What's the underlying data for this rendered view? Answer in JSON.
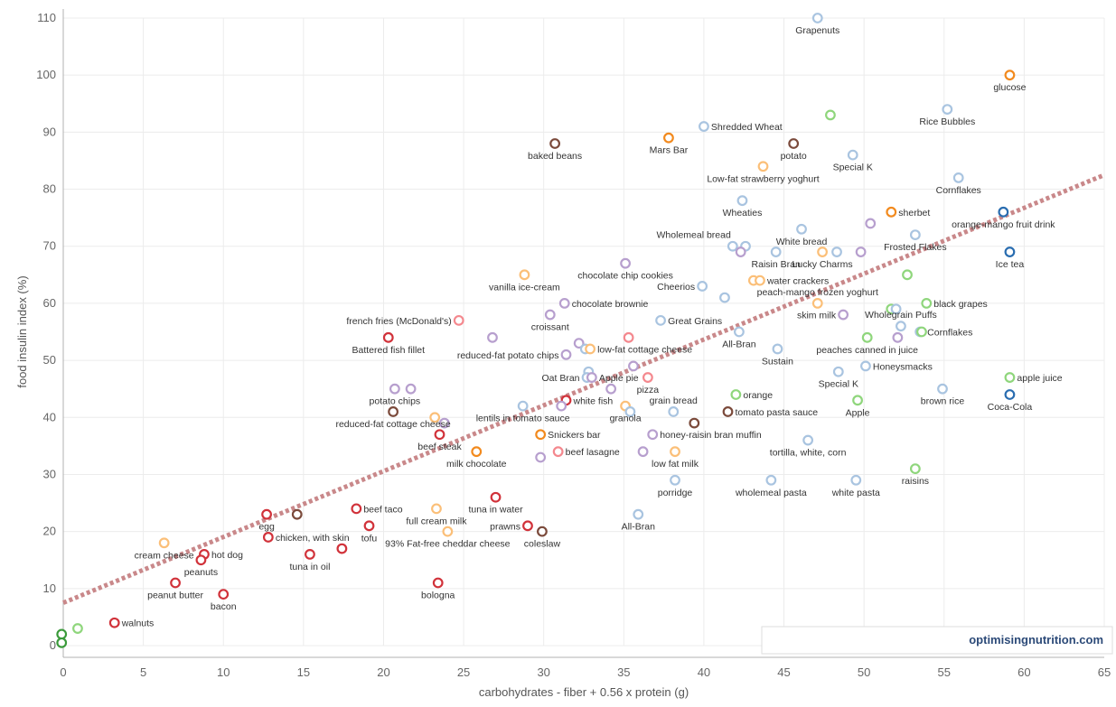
{
  "chart_data": {
    "type": "scatter",
    "title": "",
    "xlabel": "carbohydrates - fiber + 0.56 x protein (g)",
    "ylabel": "food insulin index (%)",
    "xlim": [
      0,
      65
    ],
    "ylim": [
      0,
      110
    ],
    "x_ticks": [
      "0",
      "5",
      "10",
      "15",
      "20",
      "25",
      "30",
      "35",
      "40",
      "45",
      "50",
      "55",
      "60",
      "65"
    ],
    "y_ticks": [
      "0",
      "10",
      "20",
      "30",
      "40",
      "50",
      "60",
      "70",
      "80",
      "90",
      "100",
      "110"
    ],
    "grid": true,
    "trendline": {
      "x": [
        0,
        65
      ],
      "y": [
        7.5,
        82.5
      ],
      "style": "dotted",
      "color": "#c9888a"
    },
    "watermark": "optimisingnutrition.com",
    "colors": {
      "red": "#d1323a",
      "brown": "#7b4a3b",
      "orange": "#f28a1e",
      "lightorange": "#fbbf78",
      "salmon": "#f4888e",
      "purple": "#b79fce",
      "lightblue": "#a9c4e0",
      "blue": "#2a6db0",
      "green": "#8fd67c",
      "darkgreen": "#3a9a3a"
    },
    "points": [
      {
        "x": 47.1,
        "y": 110,
        "label": "Grapenuts",
        "c": "lightblue",
        "pos": "below"
      },
      {
        "x": 59.1,
        "y": 100,
        "label": "glucose",
        "c": "orange",
        "pos": "below"
      },
      {
        "x": 55.2,
        "y": 94,
        "label": "Rice Bubbles",
        "c": "lightblue",
        "pos": "below"
      },
      {
        "x": 47.9,
        "y": 93,
        "label": "",
        "c": "green",
        "pos": "none"
      },
      {
        "x": 40.0,
        "y": 91,
        "label": "Shredded Wheat",
        "c": "lightblue",
        "pos": "right"
      },
      {
        "x": 37.8,
        "y": 89,
        "label": "Mars Bar",
        "c": "orange",
        "pos": "below"
      },
      {
        "x": 30.7,
        "y": 88,
        "label": "baked beans",
        "c": "brown",
        "pos": "below"
      },
      {
        "x": 45.6,
        "y": 88,
        "label": "potato",
        "c": "brown",
        "pos": "below"
      },
      {
        "x": 49.3,
        "y": 86,
        "label": "Special K",
        "c": "lightblue",
        "pos": "below"
      },
      {
        "x": 43.7,
        "y": 84,
        "label": "Low-fat strawberry yoghurt",
        "c": "lightorange",
        "pos": "below"
      },
      {
        "x": 55.9,
        "y": 82,
        "label": "Cornflakes",
        "c": "lightblue",
        "pos": "below"
      },
      {
        "x": 42.4,
        "y": 78,
        "label": "Wheaties",
        "c": "lightblue",
        "pos": "below"
      },
      {
        "x": 51.7,
        "y": 76,
        "label": "sherbet",
        "c": "orange",
        "pos": "right"
      },
      {
        "x": 58.7,
        "y": 76,
        "label": "orange-mango fruit drink",
        "c": "blue",
        "pos": "below"
      },
      {
        "x": 50.4,
        "y": 74,
        "label": "",
        "c": "purple",
        "pos": "none"
      },
      {
        "x": 46.1,
        "y": 73,
        "label": "White bread",
        "c": "lightblue",
        "pos": "below"
      },
      {
        "x": 53.2,
        "y": 72,
        "label": "Frosted Flakes",
        "c": "lightblue",
        "pos": "below"
      },
      {
        "x": 41.8,
        "y": 70,
        "label": "Wholemeal bread",
        "c": "lightblue",
        "pos": "above-left"
      },
      {
        "x": 42.6,
        "y": 70,
        "label": "",
        "c": "lightblue",
        "pos": "none"
      },
      {
        "x": 42.3,
        "y": 69,
        "label": "",
        "c": "purple",
        "pos": "none"
      },
      {
        "x": 44.5,
        "y": 69,
        "label": "Raisin Bran",
        "c": "lightblue",
        "pos": "below"
      },
      {
        "x": 47.4,
        "y": 69,
        "label": "Lucky Charms",
        "c": "lightorange",
        "pos": "below"
      },
      {
        "x": 48.3,
        "y": 69,
        "label": "",
        "c": "lightblue",
        "pos": "none"
      },
      {
        "x": 49.8,
        "y": 69,
        "label": "",
        "c": "purple",
        "pos": "none"
      },
      {
        "x": 59.1,
        "y": 69,
        "label": "Ice tea",
        "c": "blue",
        "pos": "below"
      },
      {
        "x": 35.1,
        "y": 67,
        "label": "chocolate chip cookies",
        "c": "purple",
        "pos": "below"
      },
      {
        "x": 28.8,
        "y": 65,
        "label": "vanilla ice-cream",
        "c": "lightorange",
        "pos": "below"
      },
      {
        "x": 52.7,
        "y": 65,
        "label": "",
        "c": "green",
        "pos": "none"
      },
      {
        "x": 43.1,
        "y": 64,
        "label": "",
        "c": "lightorange",
        "pos": "none"
      },
      {
        "x": 43.5,
        "y": 64,
        "label": "water crackers",
        "c": "lightorange",
        "pos": "right"
      },
      {
        "x": 39.9,
        "y": 63,
        "label": "Cheerios",
        "c": "lightblue",
        "pos": "left"
      },
      {
        "x": 41.3,
        "y": 61,
        "label": "",
        "c": "lightblue",
        "pos": "none"
      },
      {
        "x": 47.1,
        "y": 60,
        "label": "peach-mango frozen yoghurt",
        "c": "lightorange",
        "pos": "above"
      },
      {
        "x": 31.3,
        "y": 60,
        "label": "chocolate brownie",
        "c": "purple",
        "pos": "right"
      },
      {
        "x": 53.9,
        "y": 60,
        "label": "black grapes",
        "c": "green",
        "pos": "right"
      },
      {
        "x": 51.7,
        "y": 59,
        "label": "",
        "c": "green",
        "pos": "none"
      },
      {
        "x": 52.0,
        "y": 59,
        "label": "",
        "c": "lightblue",
        "pos": "none"
      },
      {
        "x": 30.4,
        "y": 58,
        "label": "croissant",
        "c": "purple",
        "pos": "below"
      },
      {
        "x": 48.7,
        "y": 58,
        "label": "skim milk",
        "c": "purple",
        "pos": "left"
      },
      {
        "x": 37.3,
        "y": 57,
        "label": "Great Grains",
        "c": "lightblue",
        "pos": "right"
      },
      {
        "x": 24.7,
        "y": 57,
        "label": "french fries (McDonald's)",
        "c": "salmon",
        "pos": "left"
      },
      {
        "x": 52.3,
        "y": 56,
        "label": "Wholegrain Puffs",
        "c": "lightblue",
        "pos": "above"
      },
      {
        "x": 53.5,
        "y": 55,
        "label": "Cornflakes",
        "c": "lightblue",
        "pos": "right"
      },
      {
        "x": 53.6,
        "y": 55,
        "label": "",
        "c": "green",
        "pos": "none"
      },
      {
        "x": 42.2,
        "y": 55,
        "label": "All-Bran",
        "c": "lightblue",
        "pos": "below"
      },
      {
        "x": 20.3,
        "y": 54,
        "label": "Battered fish fillet",
        "c": "red",
        "pos": "below"
      },
      {
        "x": 26.8,
        "y": 54,
        "label": "",
        "c": "purple",
        "pos": "none"
      },
      {
        "x": 35.3,
        "y": 54,
        "label": "",
        "c": "salmon",
        "pos": "none"
      },
      {
        "x": 50.2,
        "y": 54,
        "label": "peaches canned in juice",
        "c": "green",
        "pos": "below"
      },
      {
        "x": 52.1,
        "y": 54,
        "label": "",
        "c": "purple",
        "pos": "none"
      },
      {
        "x": 32.2,
        "y": 53,
        "label": "",
        "c": "purple",
        "pos": "none"
      },
      {
        "x": 32.6,
        "y": 52,
        "label": "",
        "c": "lightblue",
        "pos": "none"
      },
      {
        "x": 32.9,
        "y": 52,
        "label": "low-fat cottage cheese",
        "c": "lightorange",
        "pos": "right"
      },
      {
        "x": 31.4,
        "y": 51,
        "label": "reduced-fat potato chips",
        "c": "purple",
        "pos": "left"
      },
      {
        "x": 44.6,
        "y": 52,
        "label": "Sustain",
        "c": "lightblue",
        "pos": "below"
      },
      {
        "x": 50.1,
        "y": 49,
        "label": "Honeysmacks",
        "c": "lightblue",
        "pos": "right"
      },
      {
        "x": 35.6,
        "y": 49,
        "label": "",
        "c": "purple",
        "pos": "none"
      },
      {
        "x": 32.8,
        "y": 48,
        "label": "",
        "c": "lightblue",
        "pos": "none"
      },
      {
        "x": 48.4,
        "y": 48,
        "label": "Special K",
        "c": "lightblue",
        "pos": "below"
      },
      {
        "x": 32.7,
        "y": 47,
        "label": "Oat Bran",
        "c": "lightblue",
        "pos": "left"
      },
      {
        "x": 33.0,
        "y": 47,
        "label": "Apple pie",
        "c": "purple",
        "pos": "right"
      },
      {
        "x": 36.5,
        "y": 47,
        "label": "pizza",
        "c": "salmon",
        "pos": "below"
      },
      {
        "x": 59.1,
        "y": 47,
        "label": "apple juice",
        "c": "green",
        "pos": "right"
      },
      {
        "x": 20.7,
        "y": 45,
        "label": "potato chips",
        "c": "purple",
        "pos": "below"
      },
      {
        "x": 21.7,
        "y": 45,
        "label": "",
        "c": "purple",
        "pos": "none"
      },
      {
        "x": 34.2,
        "y": 45,
        "label": "",
        "c": "purple",
        "pos": "none"
      },
      {
        "x": 54.9,
        "y": 45,
        "label": "brown rice",
        "c": "lightblue",
        "pos": "below"
      },
      {
        "x": 42.0,
        "y": 44,
        "label": "orange",
        "c": "green",
        "pos": "right"
      },
      {
        "x": 59.1,
        "y": 44,
        "label": "Coca-Cola",
        "c": "blue",
        "pos": "below"
      },
      {
        "x": 31.4,
        "y": 43,
        "label": "white fish",
        "c": "red",
        "pos": "right"
      },
      {
        "x": 31.1,
        "y": 42,
        "label": "",
        "c": "purple",
        "pos": "none"
      },
      {
        "x": 49.6,
        "y": 43,
        "label": "Apple",
        "c": "green",
        "pos": "below"
      },
      {
        "x": 28.7,
        "y": 42,
        "label": "lentils in tomato sauce",
        "c": "lightblue",
        "pos": "below"
      },
      {
        "x": 35.1,
        "y": 42,
        "label": "granola",
        "c": "lightorange",
        "pos": "below"
      },
      {
        "x": 35.4,
        "y": 41,
        "label": "",
        "c": "lightblue",
        "pos": "none"
      },
      {
        "x": 38.1,
        "y": 41,
        "label": "grain bread",
        "c": "lightblue",
        "pos": "above"
      },
      {
        "x": 41.5,
        "y": 41,
        "label": "tomato pasta sauce",
        "c": "brown",
        "pos": "right"
      },
      {
        "x": 20.6,
        "y": 41,
        "label": "reduced-fat cottage cheese",
        "c": "brown",
        "pos": "below"
      },
      {
        "x": 23.2,
        "y": 40,
        "label": "",
        "c": "lightorange",
        "pos": "none"
      },
      {
        "x": 23.8,
        "y": 39,
        "label": "",
        "c": "purple",
        "pos": "none"
      },
      {
        "x": 39.4,
        "y": 39,
        "label": "",
        "c": "brown",
        "pos": "none"
      },
      {
        "x": 23.5,
        "y": 37,
        "label": "beef steak",
        "c": "red",
        "pos": "below"
      },
      {
        "x": 29.8,
        "y": 37,
        "label": "Snickers bar",
        "c": "orange",
        "pos": "right"
      },
      {
        "x": 36.8,
        "y": 37,
        "label": "honey-raisin bran muffin",
        "c": "purple",
        "pos": "right"
      },
      {
        "x": 46.5,
        "y": 36,
        "label": "tortilla, white, corn",
        "c": "lightblue",
        "pos": "below"
      },
      {
        "x": 25.8,
        "y": 34,
        "label": "milk chocolate",
        "c": "orange",
        "pos": "below"
      },
      {
        "x": 30.9,
        "y": 34,
        "label": "beef lasagne",
        "c": "salmon",
        "pos": "right"
      },
      {
        "x": 36.2,
        "y": 34,
        "label": "",
        "c": "purple",
        "pos": "none"
      },
      {
        "x": 38.2,
        "y": 34,
        "label": "low fat milk",
        "c": "lightorange",
        "pos": "below"
      },
      {
        "x": 29.8,
        "y": 33,
        "label": "",
        "c": "purple",
        "pos": "none"
      },
      {
        "x": 53.2,
        "y": 31,
        "label": "raisins",
        "c": "green",
        "pos": "below"
      },
      {
        "x": 38.2,
        "y": 29,
        "label": "porridge",
        "c": "lightblue",
        "pos": "below"
      },
      {
        "x": 44.2,
        "y": 29,
        "label": "wholemeal pasta",
        "c": "lightblue",
        "pos": "below"
      },
      {
        "x": 49.5,
        "y": 29,
        "label": "white pasta",
        "c": "lightblue",
        "pos": "below"
      },
      {
        "x": 27.0,
        "y": 26,
        "label": "tuna in water",
        "c": "red",
        "pos": "below"
      },
      {
        "x": 18.3,
        "y": 24,
        "label": "beef taco",
        "c": "red",
        "pos": "right"
      },
      {
        "x": 23.3,
        "y": 24,
        "label": "full cream milk",
        "c": "lightorange",
        "pos": "below"
      },
      {
        "x": 12.7,
        "y": 23,
        "label": "egg",
        "c": "red",
        "pos": "below"
      },
      {
        "x": 14.6,
        "y": 23,
        "label": "",
        "c": "brown",
        "pos": "none"
      },
      {
        "x": 35.9,
        "y": 23,
        "label": "All-Bran",
        "c": "lightblue",
        "pos": "below"
      },
      {
        "x": 19.1,
        "y": 21,
        "label": "tofu",
        "c": "red",
        "pos": "below"
      },
      {
        "x": 29.0,
        "y": 21,
        "label": "prawns",
        "c": "red",
        "pos": "left"
      },
      {
        "x": 24.0,
        "y": 20,
        "label": "93% Fat-free cheddar cheese",
        "c": "lightorange",
        "pos": "below"
      },
      {
        "x": 29.9,
        "y": 20,
        "label": "coleslaw",
        "c": "brown",
        "pos": "below"
      },
      {
        "x": 12.8,
        "y": 19,
        "label": "chicken, with skin",
        "c": "red",
        "pos": "right"
      },
      {
        "x": 6.3,
        "y": 18,
        "label": "cream cheese",
        "c": "lightorange",
        "pos": "below"
      },
      {
        "x": 17.4,
        "y": 17,
        "label": "",
        "c": "red",
        "pos": "none"
      },
      {
        "x": 8.8,
        "y": 16,
        "label": "hot dog",
        "c": "red",
        "pos": "right"
      },
      {
        "x": 15.4,
        "y": 16,
        "label": "tuna in oil",
        "c": "red",
        "pos": "below"
      },
      {
        "x": 8.6,
        "y": 15,
        "label": "peanuts",
        "c": "red",
        "pos": "below"
      },
      {
        "x": 7.0,
        "y": 11,
        "label": "peanut butter",
        "c": "red",
        "pos": "below"
      },
      {
        "x": 23.4,
        "y": 11,
        "label": "bologna",
        "c": "red",
        "pos": "below"
      },
      {
        "x": 10.0,
        "y": 9,
        "label": "bacon",
        "c": "red",
        "pos": "below"
      },
      {
        "x": 3.2,
        "y": 4,
        "label": "walnuts",
        "c": "red",
        "pos": "right"
      },
      {
        "x": 0.9,
        "y": 3,
        "label": "",
        "c": "green",
        "pos": "none"
      },
      {
        "x": -0.1,
        "y": 2,
        "label": "",
        "c": "darkgreen",
        "pos": "none"
      },
      {
        "x": -0.1,
        "y": 0.5,
        "label": "",
        "c": "darkgreen",
        "pos": "none"
      }
    ]
  }
}
